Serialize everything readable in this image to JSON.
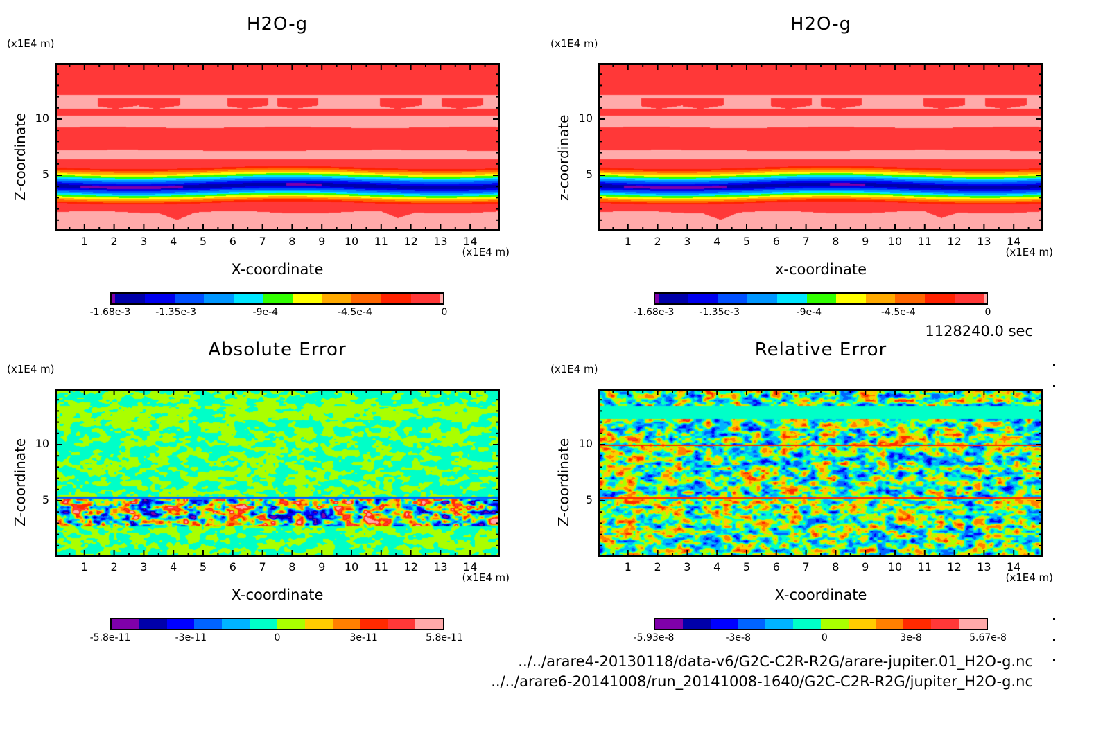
{
  "chart_data": [
    {
      "id": "top-left",
      "type": "heatmap",
      "title": "H2O-g",
      "xlabel": "X-coordinate",
      "ylabel": "Z-coordinate",
      "xunit": "(x1E4 m)",
      "yunit": "(x1E4 m)",
      "xlim": [
        0,
        15
      ],
      "ylim": [
        0,
        15
      ],
      "xticks": [
        "1",
        "2",
        "3",
        "4",
        "5",
        "6",
        "7",
        "8",
        "9",
        "10",
        "11",
        "12",
        "13",
        "14"
      ],
      "yticks": [
        "5",
        "10"
      ],
      "field": "h2o",
      "colorbar": {
        "colors": [
          "#7f00aa",
          "#0000aa",
          "#0000ee",
          "#0050ff",
          "#0096ff",
          "#00e6ff",
          "#32ff00",
          "#ffff00",
          "#ffaa00",
          "#ff6600",
          "#ff2200",
          "#ff3838",
          "#ffaaaa"
        ],
        "weights": [
          0.3,
          2.4,
          2.4,
          2.4,
          2.4,
          2.4,
          2.4,
          2.4,
          2.4,
          2.4,
          2.4,
          2.4,
          0.2
        ],
        "tick_labels": [
          "-1.68e-3",
          "-1.35e-3",
          "-9e-4",
          "-4.5e-4",
          "0"
        ],
        "tick_values": [
          -0.00168,
          -0.00135,
          -0.0009,
          -0.00045,
          0
        ],
        "range": [
          -0.00168,
          0.0
        ]
      }
    },
    {
      "id": "top-right",
      "type": "heatmap",
      "title": "H2O-g",
      "xlabel": "x-coordinate",
      "ylabel": "z-coordinate",
      "xunit": "(x1E4 m)",
      "yunit": "(x1E4 m)",
      "xlim": [
        0,
        15
      ],
      "ylim": [
        0,
        15
      ],
      "xticks": [
        "1",
        "2",
        "3",
        "4",
        "5",
        "6",
        "7",
        "8",
        "9",
        "10",
        "11",
        "12",
        "13",
        "14"
      ],
      "yticks": [
        "5",
        "10"
      ],
      "field": "h2o",
      "colorbar": {
        "colors": [
          "#7f00aa",
          "#0000aa",
          "#0000ee",
          "#0050ff",
          "#0096ff",
          "#00e6ff",
          "#32ff00",
          "#ffff00",
          "#ffaa00",
          "#ff6600",
          "#ff2200",
          "#ff3838",
          "#ffaaaa"
        ],
        "weights": [
          0.3,
          2.4,
          2.4,
          2.4,
          2.4,
          2.4,
          2.4,
          2.4,
          2.4,
          2.4,
          2.4,
          2.4,
          0.2
        ],
        "tick_labels": [
          "-1.68e-3",
          "-1.35e-3",
          "-9e-4",
          "-4.5e-4",
          "0"
        ],
        "tick_values": [
          -0.00168,
          -0.00135,
          -0.0009,
          -0.00045,
          0
        ],
        "range": [
          -0.00168,
          0.0
        ]
      }
    },
    {
      "id": "bottom-left",
      "type": "heatmap",
      "title": "Absolute Error",
      "xlabel": "X-coordinate",
      "ylabel": "Z-coordinate",
      "xunit": "(x1E4 m)",
      "yunit": "(x1E4 m)",
      "xlim": [
        0,
        15
      ],
      "ylim": [
        0,
        15
      ],
      "xticks": [
        "1",
        "2",
        "3",
        "4",
        "5",
        "6",
        "7",
        "8",
        "9",
        "10",
        "11",
        "12",
        "13",
        "14"
      ],
      "yticks": [
        "5",
        "10"
      ],
      "field": "abs_error",
      "colorbar": {
        "colors": [
          "#7f00aa",
          "#0000aa",
          "#0000ff",
          "#0064ff",
          "#00b4ff",
          "#00ffc8",
          "#aaff00",
          "#ffcc00",
          "#ff8000",
          "#ff2a00",
          "#ff3838",
          "#ffaaaa"
        ],
        "weights": [
          1,
          1,
          1,
          1,
          1,
          1,
          1,
          1,
          1,
          1,
          1,
          1
        ],
        "tick_labels": [
          "-5.8e-11",
          "-3e-11",
          "0",
          "3e-11",
          "5.8e-11"
        ],
        "tick_values": [
          -5.8e-11,
          -3e-11,
          0,
          3e-11,
          5.8e-11
        ],
        "range": [
          -5.8e-11,
          5.8e-11
        ]
      }
    },
    {
      "id": "bottom-right",
      "type": "heatmap",
      "title": "Relative Error",
      "xlabel": "X-coordinate",
      "ylabel": "Z-coordinate",
      "xunit": "(x1E4 m)",
      "yunit": "(x1E4 m)",
      "xlim": [
        0,
        15
      ],
      "ylim": [
        0,
        15
      ],
      "xticks": [
        "1",
        "2",
        "3",
        "4",
        "5",
        "6",
        "7",
        "8",
        "9",
        "10",
        "11",
        "12",
        "13",
        "14"
      ],
      "yticks": [
        "5",
        "10"
      ],
      "field": "rel_error",
      "colorbar": {
        "colors": [
          "#7f00aa",
          "#0000aa",
          "#0000ff",
          "#0064ff",
          "#00b4ff",
          "#00ffc8",
          "#aaff00",
          "#ffcc00",
          "#ff8000",
          "#ff2a00",
          "#ff3838",
          "#ffaaaa"
        ],
        "weights": [
          1,
          1,
          1,
          1,
          1,
          1,
          1,
          1,
          1,
          1,
          1,
          1
        ],
        "tick_labels": [
          "-5.93e-8",
          "-3e-8",
          "0",
          "3e-8",
          "5.67e-8"
        ],
        "tick_values": [
          -5.93e-08,
          -3e-08,
          0,
          3e-08,
          5.67e-08
        ],
        "range": [
          -5.93e-08,
          5.67e-08
        ]
      }
    }
  ],
  "time_label": "1128240.0 sec",
  "file_paths": [
    "../../arare4-20130118/data-v6/G2C-C2R-R2G/arare-jupiter.01_H2O-g.nc",
    "../../arare6-20141008/run_20141008-1640/G2C-C2R-R2G/jupiter_H2O-g.nc"
  ]
}
